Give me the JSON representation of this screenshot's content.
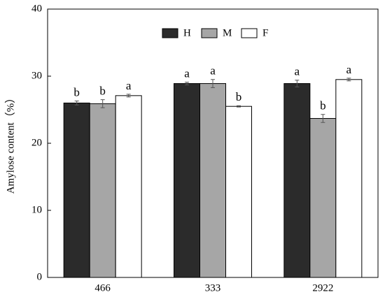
{
  "chart_data": {
    "type": "bar",
    "y_label": "Amylose content（%）",
    "categories": [
      "466",
      "333",
      "2922"
    ],
    "series": [
      {
        "name": "H",
        "color": "#2b2b2b",
        "values": [
          26.0,
          28.9,
          28.9
        ],
        "errors": [
          0.3,
          0.2,
          0.5
        ],
        "labels": [
          "b",
          "a",
          "a"
        ]
      },
      {
        "name": "M",
        "color": "#a6a6a6",
        "values": [
          25.9,
          28.9,
          23.7
        ],
        "errors": [
          0.6,
          0.6,
          0.6
        ],
        "labels": [
          "b",
          "a",
          "b"
        ]
      },
      {
        "name": "F",
        "color": "#ffffff",
        "values": [
          27.1,
          25.5,
          29.5
        ],
        "errors": [
          0.2,
          0.1,
          0.2
        ],
        "labels": [
          "a",
          "b",
          "a"
        ]
      }
    ],
    "ylim": [
      0,
      40
    ],
    "yticks": [
      0,
      10,
      20,
      30,
      40
    ],
    "legend": "top"
  }
}
